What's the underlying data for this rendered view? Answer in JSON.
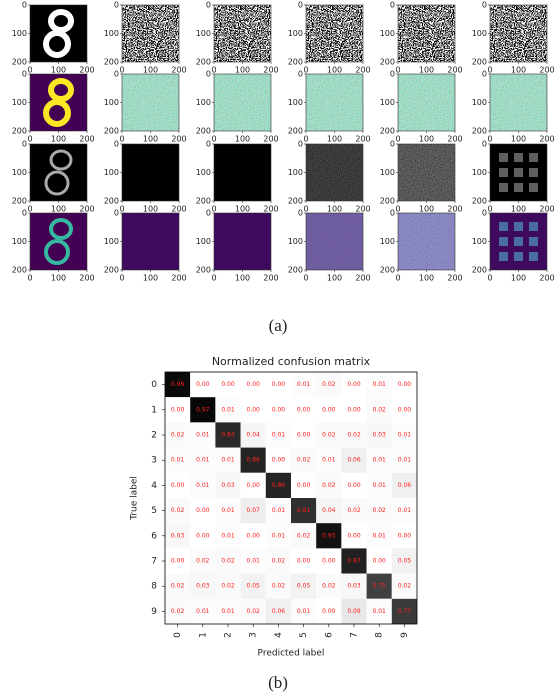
{
  "figure_a": {
    "caption": "(a)",
    "xticks": [
      0,
      100,
      200
    ],
    "yticks": [
      0,
      100,
      200
    ]
  },
  "chart_data": {
    "type": "heatmap",
    "title": "Normalized confusion matrix",
    "x_label": "Predicted label",
    "y_label": "True label",
    "x_categories": [
      0,
      1,
      2,
      3,
      4,
      5,
      6,
      7,
      8,
      9
    ],
    "y_categories": [
      0,
      1,
      2,
      3,
      4,
      5,
      6,
      7,
      8,
      9
    ],
    "colormap": "Greys",
    "text_color": "#ff2020",
    "values": [
      [
        0.96,
        0.0,
        0.0,
        0.0,
        0.0,
        0.01,
        0.02,
        0.0,
        0.01,
        0.0
      ],
      [
        0.0,
        0.97,
        0.01,
        0.0,
        0.0,
        0.0,
        0.0,
        0.0,
        0.02,
        0.0
      ],
      [
        0.02,
        0.01,
        0.84,
        0.04,
        0.01,
        0.0,
        0.02,
        0.02,
        0.03,
        0.01
      ],
      [
        0.01,
        0.01,
        0.01,
        0.86,
        0.0,
        0.02,
        0.01,
        0.06,
        0.01,
        0.01
      ],
      [
        0.0,
        0.01,
        0.03,
        0.0,
        0.86,
        0.0,
        0.02,
        0.0,
        0.01,
        0.06
      ],
      [
        0.02,
        0.0,
        0.01,
        0.07,
        0.01,
        0.81,
        0.04,
        0.02,
        0.02,
        0.01
      ],
      [
        0.03,
        0.0,
        0.01,
        0.0,
        0.01,
        0.02,
        0.93,
        0.0,
        0.01,
        0.0
      ],
      [
        0.0,
        0.02,
        0.02,
        0.01,
        0.02,
        0.0,
        0.0,
        0.87,
        0.0,
        0.05
      ],
      [
        0.02,
        0.03,
        0.02,
        0.05,
        0.02,
        0.05,
        0.02,
        0.03,
        0.75,
        0.02
      ],
      [
        0.02,
        0.01,
        0.01,
        0.02,
        0.06,
        0.01,
        0.0,
        0.09,
        0.01,
        0.77
      ]
    ],
    "value_labels": [
      [
        "0.96",
        "0.00",
        "0.00",
        "0.00",
        "0.00",
        "0.01",
        "0.02",
        "0.00",
        "0.01",
        "0.00"
      ],
      [
        "0.00",
        "0.97",
        "0.01",
        "0.00",
        "0.00",
        "0.00",
        "0.00",
        "0.00",
        "0.02",
        "0.00"
      ],
      [
        "0.02",
        "0.01",
        "0.84",
        "0.04",
        "0.01",
        "0.00",
        "0.02",
        "0.02",
        "0.03",
        "0.01"
      ],
      [
        "0.01",
        "0.01",
        "0.01",
        "0.86",
        "0.00",
        "0.02",
        "0.01",
        "0.06",
        "0.01",
        "0.01"
      ],
      [
        "0.00",
        "0.01",
        "0.03",
        "0.00",
        "0.86",
        "0.00",
        "0.02",
        "0.00",
        "0.01",
        "0.06"
      ],
      [
        "0.02",
        "0.00",
        "0.01",
        "0.07",
        "0.01",
        "0.81",
        "0.04",
        "0.02",
        "0.02",
        "0.01"
      ],
      [
        "0.03",
        "0.00",
        "0.01",
        "0.00",
        "0.01",
        "0.02",
        "0.93",
        "0.00",
        "0.01",
        "0.00"
      ],
      [
        "0.00",
        "0.02",
        "0.02",
        "0.01",
        "0.02",
        "0.00",
        "0.00",
        "0.87",
        "0.00",
        "0.05"
      ],
      [
        "0.02",
        "0.03",
        "0.02",
        "0.05",
        "0.02",
        "0.05",
        "0.02",
        "0.03",
        "0.75",
        "0.02"
      ],
      [
        "0.02",
        "0.01",
        "0.01",
        "0.02",
        "0.06",
        "0.01",
        "0.00",
        "0.09",
        "0.01",
        "0.77"
      ]
    ]
  },
  "caption_b": "(b)"
}
